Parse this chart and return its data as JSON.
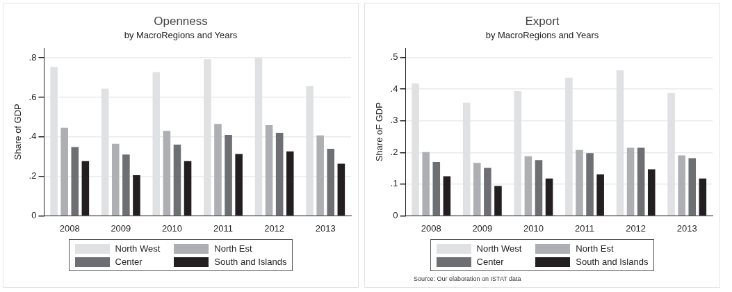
{
  "chart_data": [
    {
      "type": "bar",
      "title": "Openness",
      "subtitle": "by MacroRegions and Years",
      "ylabel": "Share of GDP",
      "categories": [
        "2008",
        "2009",
        "2010",
        "2011",
        "2012",
        "2013"
      ],
      "series": [
        {
          "name": "North West",
          "color": "#e0e1e3",
          "values": [
            0.754,
            0.644,
            0.728,
            0.793,
            0.8,
            0.657
          ]
        },
        {
          "name": "North Est",
          "color": "#aeafb2",
          "values": [
            0.446,
            0.365,
            0.43,
            0.465,
            0.459,
            0.407
          ]
        },
        {
          "name": "Center",
          "color": "#6e6f73",
          "values": [
            0.348,
            0.31,
            0.361,
            0.41,
            0.42,
            0.339
          ]
        },
        {
          "name": "South and Islands",
          "color": "#231f20",
          "values": [
            0.277,
            0.206,
            0.277,
            0.313,
            0.326,
            0.264
          ]
        }
      ],
      "ylim": [
        0,
        0.85
      ],
      "yticks": [
        0,
        {
          "value": 0.2,
          "label": ".2"
        },
        {
          "value": 0.4,
          "label": ".4"
        },
        {
          "value": 0.6,
          "label": ".6"
        },
        {
          "value": 0.8,
          "label": ".8"
        }
      ],
      "grid": "y",
      "legend": "bottom"
    },
    {
      "type": "bar",
      "title": "Export",
      "subtitle": "by MacroRegions and Years",
      "ylabel": "Share oF GDP",
      "categories": [
        "2008",
        "2009",
        "2010",
        "2011",
        "2012",
        "2013"
      ],
      "series": [
        {
          "name": "North West",
          "color": "#e0e1e3",
          "values": [
            0.418,
            0.357,
            0.394,
            0.436,
            0.459,
            0.388
          ]
        },
        {
          "name": "North Est",
          "color": "#aeafb2",
          "values": [
            0.201,
            0.167,
            0.188,
            0.208,
            0.215,
            0.191
          ]
        },
        {
          "name": "Center",
          "color": "#6e6f73",
          "values": [
            0.17,
            0.151,
            0.176,
            0.198,
            0.215,
            0.182
          ]
        },
        {
          "name": "South and Islands",
          "color": "#231f20",
          "values": [
            0.125,
            0.094,
            0.118,
            0.131,
            0.147,
            0.118
          ]
        }
      ],
      "ylim": [
        0,
        0.53
      ],
      "yticks": [
        0,
        {
          "value": 0.1,
          "label": ".1"
        },
        {
          "value": 0.2,
          "label": ".2"
        },
        {
          "value": 0.3,
          "label": ".3"
        },
        {
          "value": 0.4,
          "label": ".4"
        },
        {
          "value": 0.5,
          "label": ".5"
        }
      ],
      "grid": "y",
      "legend": "bottom",
      "annotations": [
        "Source: Our elaboration on ISTAT data"
      ]
    }
  ]
}
